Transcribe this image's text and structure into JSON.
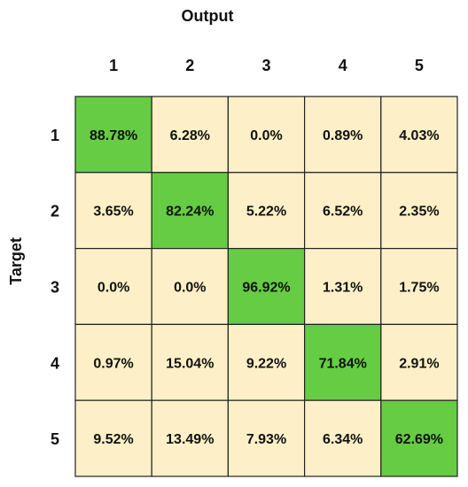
{
  "chart_data": {
    "type": "heatmap",
    "xlabel": "Output",
    "ylabel": "Target",
    "x_categories": [
      "1",
      "2",
      "3",
      "4",
      "5"
    ],
    "y_categories": [
      "1",
      "2",
      "3",
      "4",
      "5"
    ],
    "values": [
      [
        "88.78%",
        "6.28%",
        "0.0%",
        "0.89%",
        "4.03%"
      ],
      [
        "3.65%",
        "82.24%",
        "5.22%",
        "6.52%",
        "2.35%"
      ],
      [
        "0.0%",
        "0.0%",
        "96.92%",
        "1.31%",
        "1.75%"
      ],
      [
        "0.97%",
        "15.04%",
        "9.22%",
        "71.84%",
        "2.91%"
      ],
      [
        "9.52%",
        "13.49%",
        "7.93%",
        "6.34%",
        "62.69%"
      ]
    ],
    "colors": {
      "diagonal": "#66cc44",
      "off_diagonal": "#fdf0c8",
      "border": "#222222"
    }
  }
}
